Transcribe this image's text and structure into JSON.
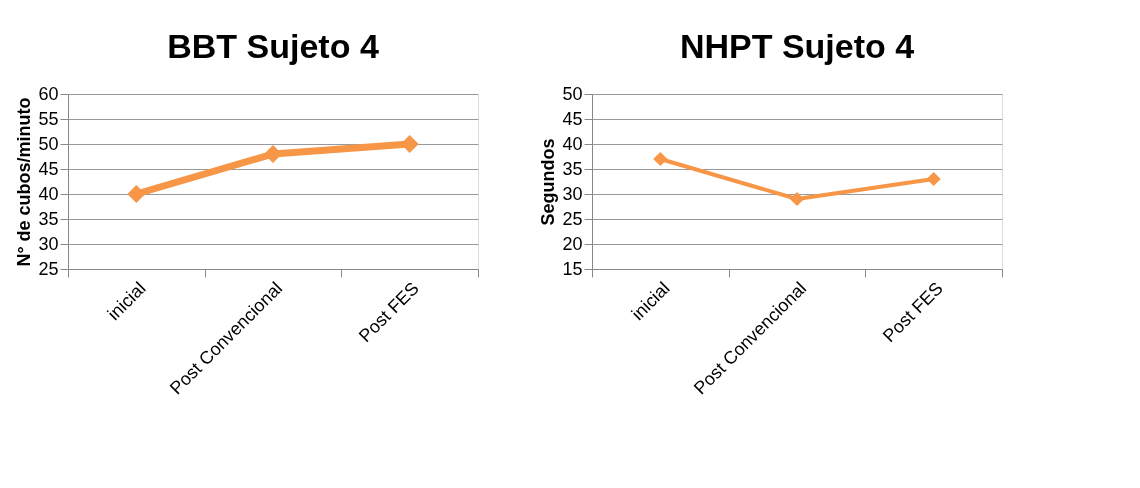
{
  "chart_data": [
    {
      "type": "line",
      "title": "BBT Sujeto 4",
      "ylabel": "N° de cubos/minuto",
      "categories": [
        "inicial",
        "Post Convencional",
        "Post FES"
      ],
      "series": [
        {
          "color": "#f79646",
          "values": [
            40,
            48,
            50
          ]
        }
      ],
      "ylim": [
        25,
        60
      ],
      "yticks": [
        25,
        30,
        35,
        40,
        45,
        50,
        55,
        60
      ],
      "grid": "y",
      "marker": "diamond",
      "line_style": "solid",
      "legend": false
    },
    {
      "type": "line",
      "title": "NHPT Sujeto 4",
      "ylabel": "Segundos",
      "categories": [
        "inicial",
        "Post Convencional",
        "Post FES"
      ],
      "series": [
        {
          "color": "#f79646",
          "values": [
            37,
            29,
            33
          ]
        }
      ],
      "ylim": [
        15,
        50
      ],
      "yticks": [
        15,
        20,
        25,
        30,
        35,
        40,
        45,
        50
      ],
      "grid": "y",
      "marker": "diamond",
      "line_style": "solid",
      "legend": false
    }
  ]
}
